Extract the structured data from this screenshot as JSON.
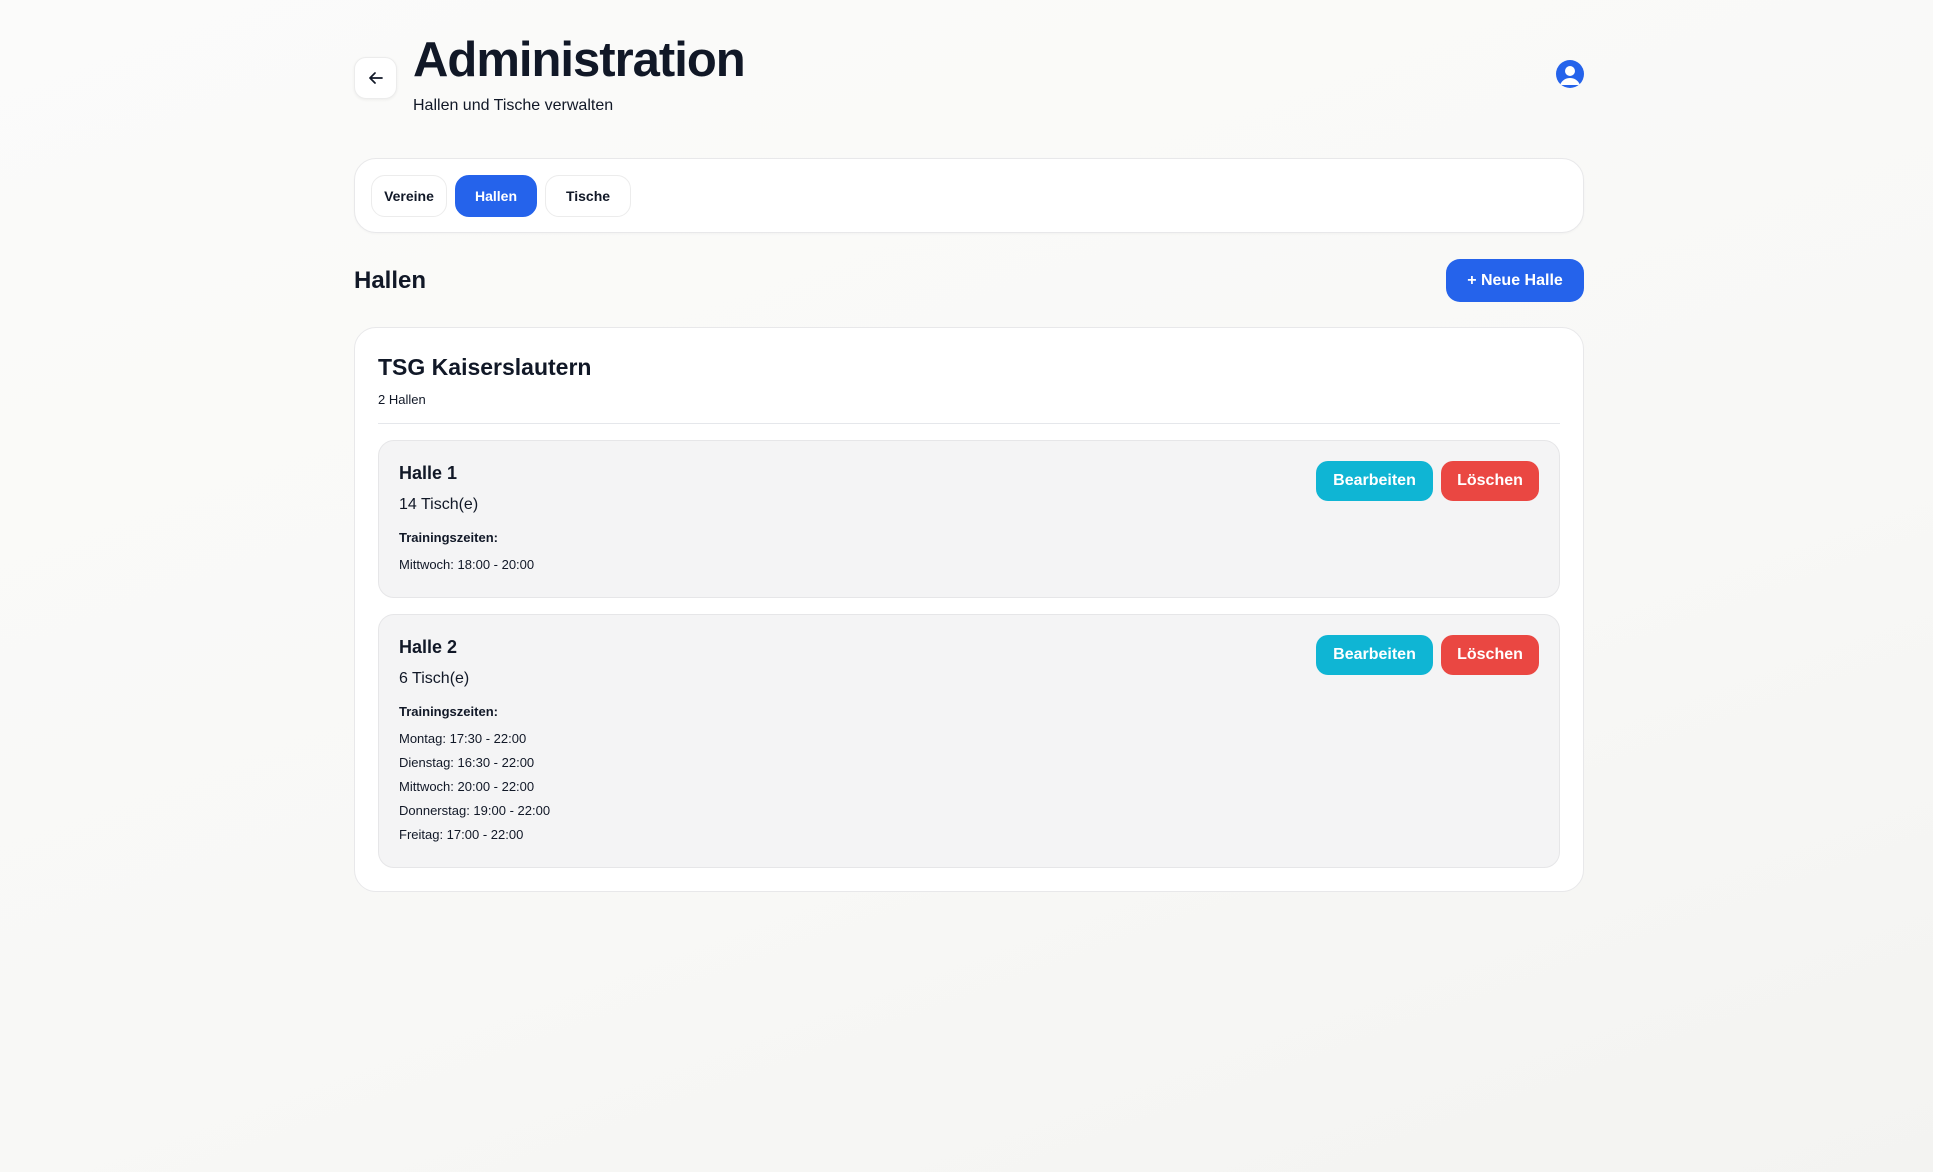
{
  "header": {
    "title": "Administration",
    "subtitle": "Hallen und Tische verwalten",
    "back_icon": "arrow-left-icon",
    "avatar_icon": "user-circle-icon"
  },
  "tabs": [
    {
      "label": "Vereine",
      "active": false
    },
    {
      "label": "Hallen",
      "active": true
    },
    {
      "label": "Tische",
      "active": false
    }
  ],
  "section": {
    "title": "Hallen",
    "new_button": "+ Neue Halle"
  },
  "club": {
    "name": "TSG Kaiserslautern",
    "count": "2 Hallen",
    "halls": [
      {
        "name": "Halle 1",
        "tables": "14 Tisch(e)",
        "times_label": "Trainingszeiten:",
        "times": [
          "Mittwoch: 18:00 - 20:00"
        ],
        "edit": "Bearbeiten",
        "delete": "Löschen"
      },
      {
        "name": "Halle 2",
        "tables": "6 Tisch(e)",
        "times_label": "Trainingszeiten:",
        "times": [
          "Montag: 17:30 - 22:00",
          "Dienstag: 16:30 - 22:00",
          "Mittwoch: 20:00 - 22:00",
          "Donnerstag: 19:00 - 22:00",
          "Freitag: 17:00 - 22:00"
        ],
        "edit": "Bearbeiten",
        "delete": "Löschen"
      }
    ]
  },
  "colors": {
    "primary": "#2563eb",
    "edit": "#0fb5d4",
    "delete": "#ea4742",
    "text": "#111827"
  }
}
